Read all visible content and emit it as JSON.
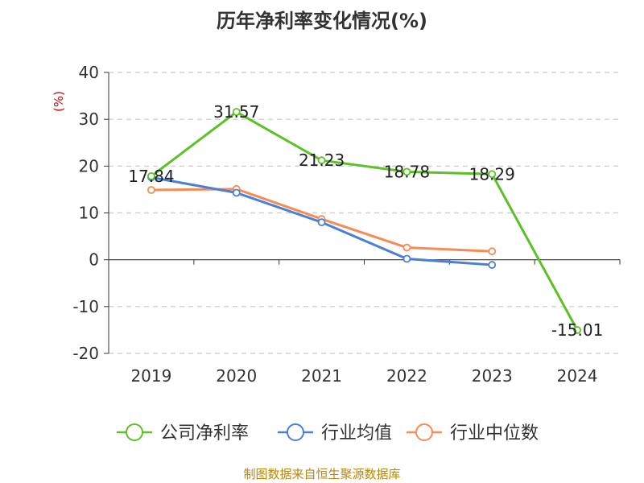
{
  "title": "历年净利率变化情况(%)",
  "source": "制图数据来自恒生聚源数据库",
  "chart_data": {
    "type": "line",
    "title": "历年净利率变化情况(%)",
    "xlabel": "",
    "ylabel": "(%)",
    "categories": [
      "2019",
      "2020",
      "2021",
      "2022",
      "2023",
      "2024"
    ],
    "ylim": [
      -20,
      40
    ],
    "yticks": [
      -20,
      -10,
      0,
      10,
      20,
      30,
      40
    ],
    "grid": true,
    "legend_position": "bottom",
    "series": [
      {
        "name": "公司净利率",
        "color": "#5cc125",
        "values": [
          17.84,
          31.57,
          21.23,
          18.78,
          18.29,
          -15.01
        ],
        "labels": [
          "17.84",
          "31.57",
          "21.23",
          "18.78",
          "18.29",
          "-15.01"
        ]
      },
      {
        "name": "行业均值",
        "color": "#4a7fd9",
        "values": [
          17.6,
          14.3,
          8.0,
          0.2,
          -1.1,
          null
        ]
      },
      {
        "name": "行业中位数",
        "color": "#f78b55",
        "values": [
          14.9,
          15.1,
          8.7,
          2.6,
          1.8,
          null
        ]
      }
    ]
  }
}
